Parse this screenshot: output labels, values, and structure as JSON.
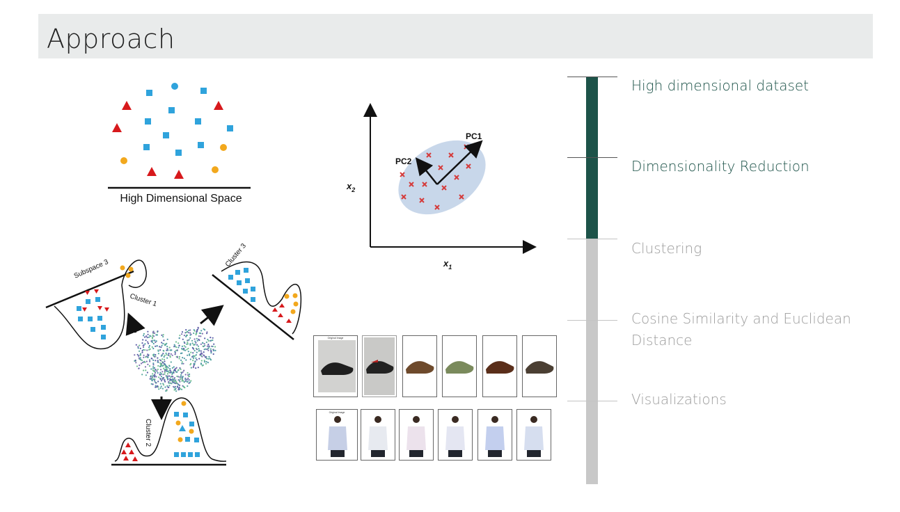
{
  "slide": {
    "title": "Approach"
  },
  "figures": {
    "high_dim": {
      "caption": "High Dimensional Space"
    },
    "pca": {
      "pc1_label": "PC1",
      "pc2_label": "PC2",
      "x_axis_label": "x",
      "x_axis_sub": "1",
      "y_axis_label": "x",
      "y_axis_sub": "2"
    },
    "subspace": {
      "subspace_label": "Subspace 3",
      "cluster1_label": "Cluster 1",
      "cluster2_label": "Cluster 2",
      "cluster3_label": "Cluster 3"
    },
    "gallery": {
      "original_caption": "Original Image"
    }
  },
  "timeline": {
    "steps": [
      {
        "label": "High dimensional dataset",
        "state": "active"
      },
      {
        "label": "Dimensionality Reduction",
        "state": "active"
      },
      {
        "label": "Clustering",
        "state": "inactive"
      },
      {
        "label": "Cosine Similarity and Euclidean Distance",
        "state": "inactive"
      },
      {
        "label": "Visualizations",
        "state": "inactive"
      }
    ],
    "colors": {
      "active": "#1d5349",
      "inactive": "#c8c8c8"
    }
  },
  "colors": {
    "red": "#d7191c",
    "blue": "#2fa3dc",
    "orange": "#f2a81d"
  }
}
